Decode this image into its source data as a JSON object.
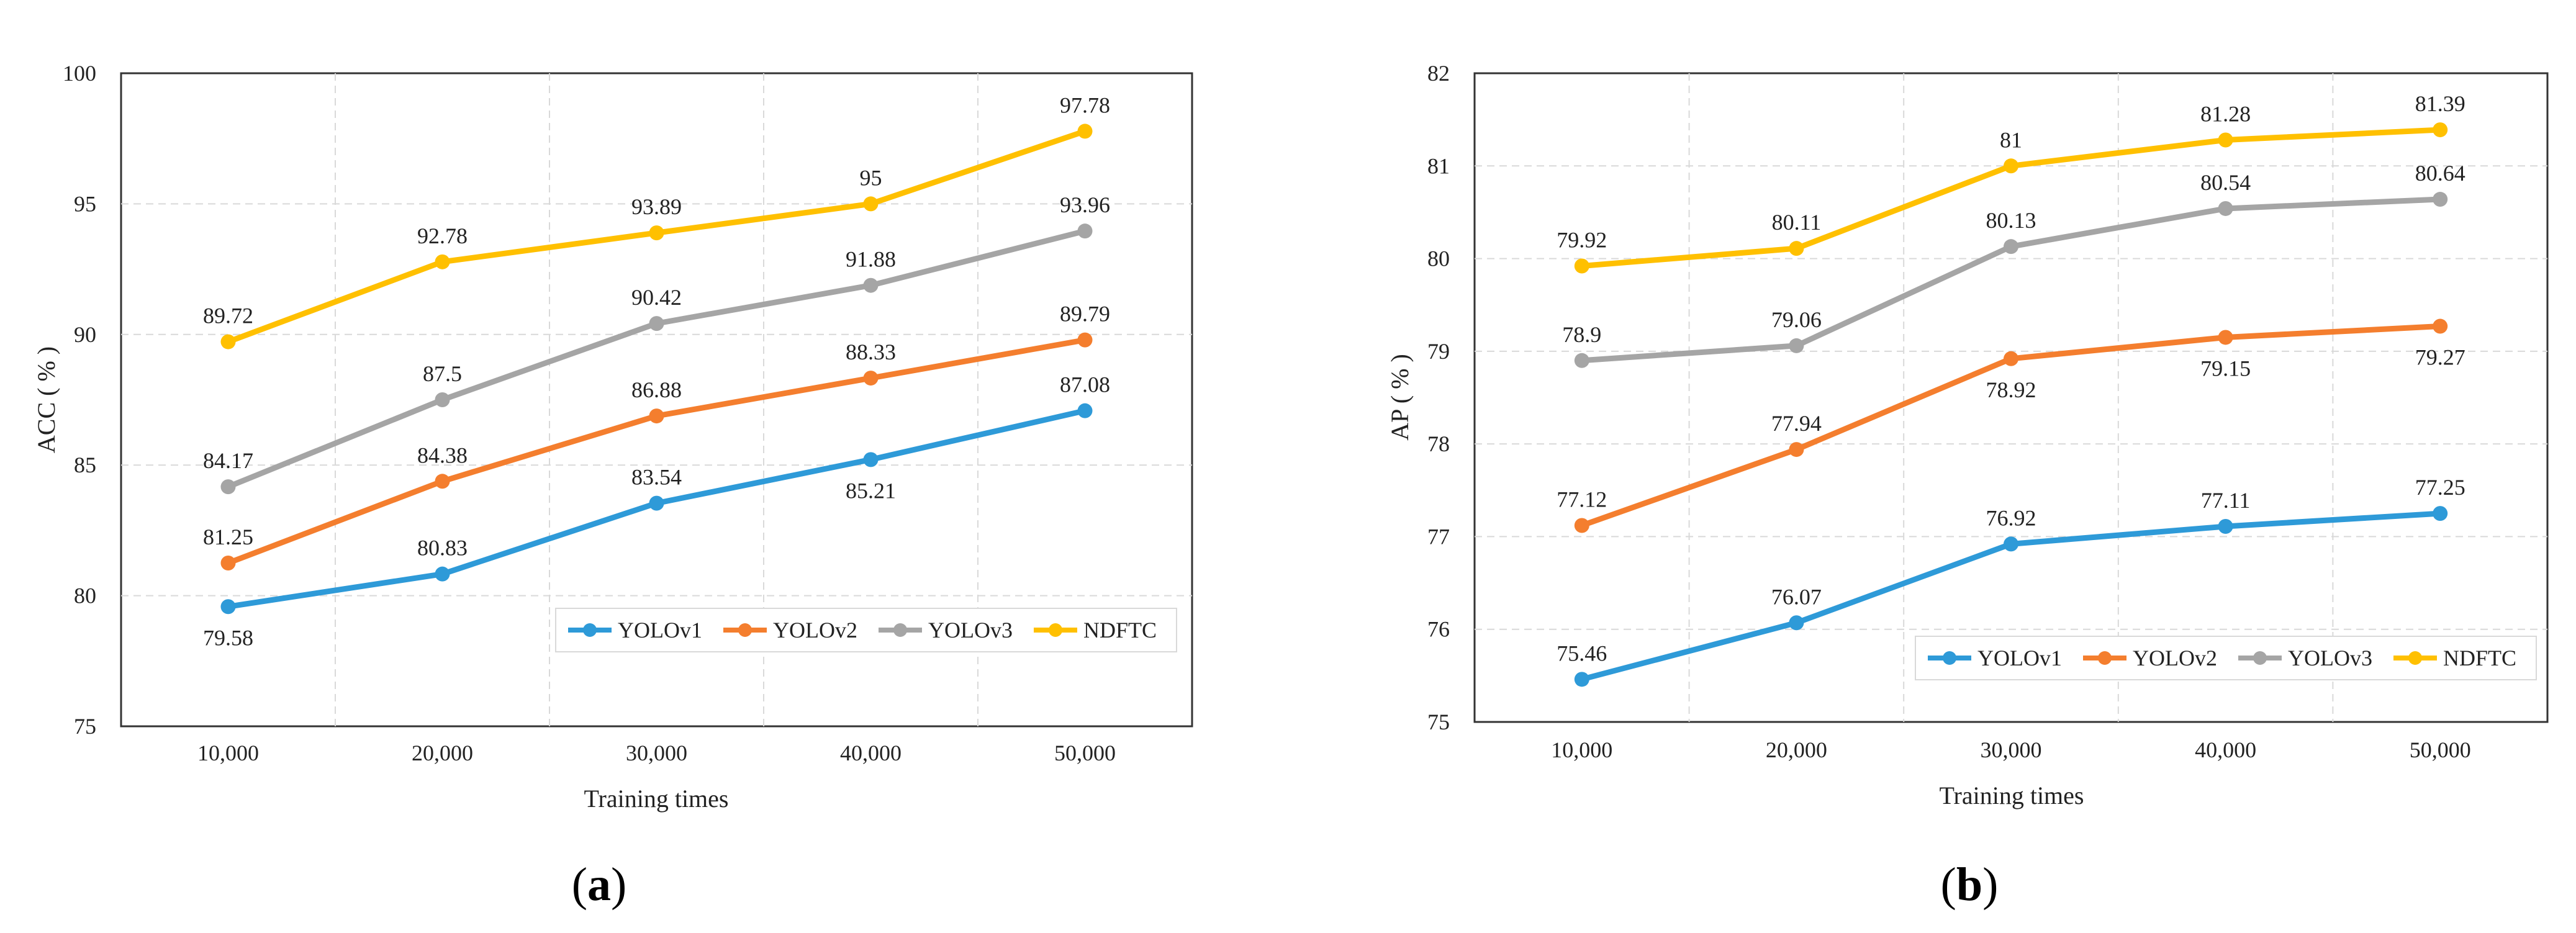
{
  "chart_data": [
    {
      "type": "line",
      "panel": "(a)",
      "panel_letter": "a",
      "title": "",
      "xlabel": "Training times",
      "ylabel": "ACC ( % )",
      "categories": [
        "10,000",
        "20,000",
        "30,000",
        "40,000",
        "50,000"
      ],
      "ylim": [
        75,
        100
      ],
      "yticks": [
        75,
        80,
        85,
        90,
        95,
        100
      ],
      "grid": true,
      "legend_position": "bottom-right",
      "series": [
        {
          "name": "YOLOv1",
          "color": "#2E9AD8",
          "values": [
            79.58,
            80.83,
            83.54,
            85.21,
            87.08
          ],
          "labels": [
            "79.58",
            "80.83",
            "83.54",
            "85.21",
            "87.08"
          ],
          "label_pos": [
            "below",
            "above",
            "above",
            "below",
            "above"
          ]
        },
        {
          "name": "YOLOv2",
          "color": "#F47E2E",
          "values": [
            81.25,
            84.38,
            86.88,
            88.33,
            89.79
          ],
          "labels": [
            "81.25",
            "84.38",
            "86.88",
            "88.33",
            "89.79"
          ],
          "label_pos": [
            "above",
            "above",
            "above",
            "above",
            "above"
          ]
        },
        {
          "name": "YOLOv3",
          "color": "#A5A5A5",
          "values": [
            84.17,
            87.5,
            90.42,
            91.88,
            93.96
          ],
          "labels": [
            "84.17",
            "87.5",
            "90.42",
            "91.88",
            "93.96"
          ],
          "label_pos": [
            "above",
            "above",
            "above",
            "above",
            "above"
          ]
        },
        {
          "name": "NDFTC",
          "color": "#FFC000",
          "values": [
            89.72,
            92.78,
            93.89,
            95,
            97.78
          ],
          "labels": [
            "89.72",
            "92.78",
            "93.89",
            "95",
            "97.78"
          ],
          "label_pos": [
            "above",
            "above",
            "above",
            "above",
            "above"
          ]
        }
      ]
    },
    {
      "type": "line",
      "panel": "(b)",
      "panel_letter": "b",
      "title": "",
      "xlabel": "Training times",
      "ylabel": "AP ( % )",
      "categories": [
        "10,000",
        "20,000",
        "30,000",
        "40,000",
        "50,000"
      ],
      "ylim": [
        75,
        82
      ],
      "yticks": [
        75,
        76,
        77,
        78,
        79,
        80,
        81,
        82
      ],
      "grid": true,
      "legend_position": "bottom-right",
      "series": [
        {
          "name": "YOLOv1",
          "color": "#2E9AD8",
          "values": [
            75.46,
            76.07,
            76.92,
            77.11,
            77.25
          ],
          "labels": [
            "75.46",
            "76.07",
            "76.92",
            "77.11",
            "77.25"
          ],
          "label_pos": [
            "above",
            "above",
            "above",
            "above",
            "above"
          ]
        },
        {
          "name": "YOLOv2",
          "color": "#F47E2E",
          "values": [
            77.12,
            77.94,
            78.92,
            79.15,
            79.27
          ],
          "labels": [
            "77.12",
            "77.94",
            "78.92",
            "79.15",
            "79.27"
          ],
          "label_pos": [
            "above",
            "above",
            "below",
            "below",
            "below"
          ]
        },
        {
          "name": "YOLOv3",
          "color": "#A5A5A5",
          "values": [
            78.9,
            79.06,
            80.13,
            80.54,
            80.64
          ],
          "labels": [
            "78.9",
            "79.06",
            "80.13",
            "80.54",
            "80.64"
          ],
          "label_pos": [
            "above",
            "above",
            "above",
            "above",
            "above"
          ]
        },
        {
          "name": "NDFTC",
          "color": "#FFC000",
          "values": [
            79.92,
            80.11,
            81,
            81.28,
            81.39
          ],
          "labels": [
            "79.92",
            "80.11",
            "81",
            "81.28",
            "81.39"
          ],
          "label_pos": [
            "above",
            "above",
            "above",
            "above",
            "above"
          ]
        }
      ]
    }
  ]
}
